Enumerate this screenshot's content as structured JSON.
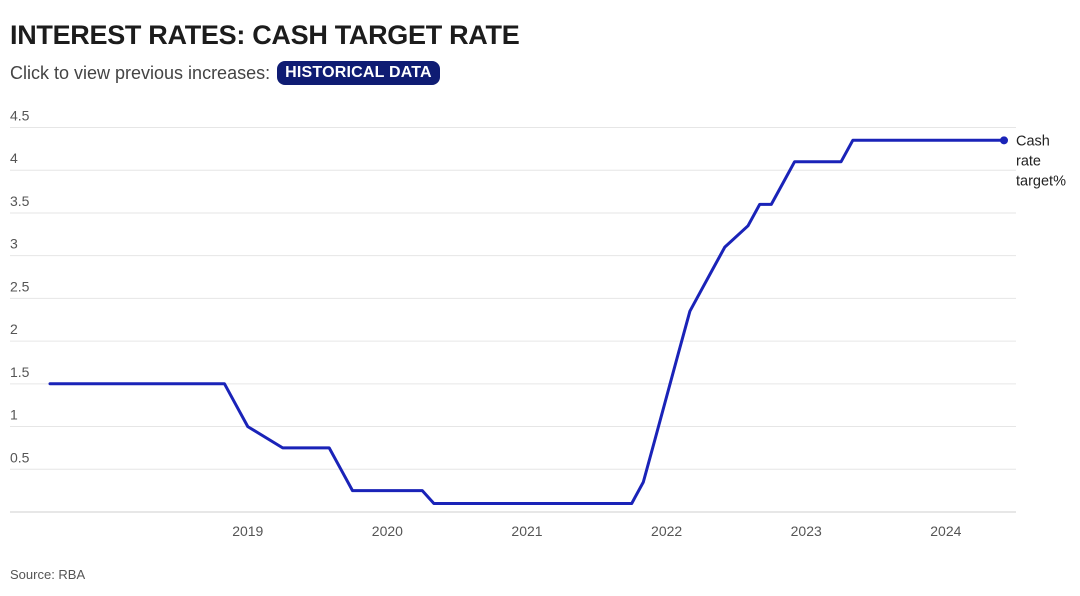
{
  "header": {
    "title": "INTEREST RATES: CASH TARGET RATE",
    "subtitle": "Click to view previous increases:",
    "button_label": "HISTORICAL DATA"
  },
  "source": "Source: RBA",
  "colors": {
    "series": "#1a23b8",
    "button_bg": "#0f1c73",
    "grid": "#e6e6e6"
  },
  "chart_data": {
    "type": "line",
    "title": "INTEREST RATES: CASH TARGET RATE",
    "xlabel": "",
    "ylabel": "",
    "x_ticks": [
      "2019",
      "2020",
      "2021",
      "2022",
      "2023",
      "2024"
    ],
    "y_ticks": [
      "0.5",
      "1",
      "1.5",
      "2",
      "2.5",
      "3",
      "3.5",
      "4",
      "4.5"
    ],
    "ylim": [
      0,
      4.5
    ],
    "xlim": [
      "2018-02",
      "2024-12"
    ],
    "grid": true,
    "series": [
      {
        "name": "Cash rate target%",
        "x": [
          "2018-02",
          "2019-05",
          "2019-06",
          "2019-07",
          "2019-10",
          "2020-02",
          "2020-03",
          "2020-04",
          "2020-10",
          "2020-11",
          "2022-04",
          "2022-05",
          "2022-06",
          "2022-07",
          "2022-08",
          "2022-09",
          "2022-10",
          "2022-11",
          "2022-12",
          "2023-02",
          "2023-03",
          "2023-04",
          "2023-05",
          "2023-06",
          "2023-07",
          "2023-10",
          "2023-11",
          "2024-12"
        ],
        "values": [
          1.5,
          1.5,
          1.25,
          1.0,
          0.75,
          0.75,
          0.5,
          0.25,
          0.25,
          0.1,
          0.1,
          0.35,
          0.85,
          1.35,
          1.85,
          2.35,
          2.6,
          2.85,
          3.1,
          3.35,
          3.6,
          3.6,
          3.85,
          4.1,
          4.1,
          4.1,
          4.35,
          4.35
        ]
      }
    ]
  }
}
